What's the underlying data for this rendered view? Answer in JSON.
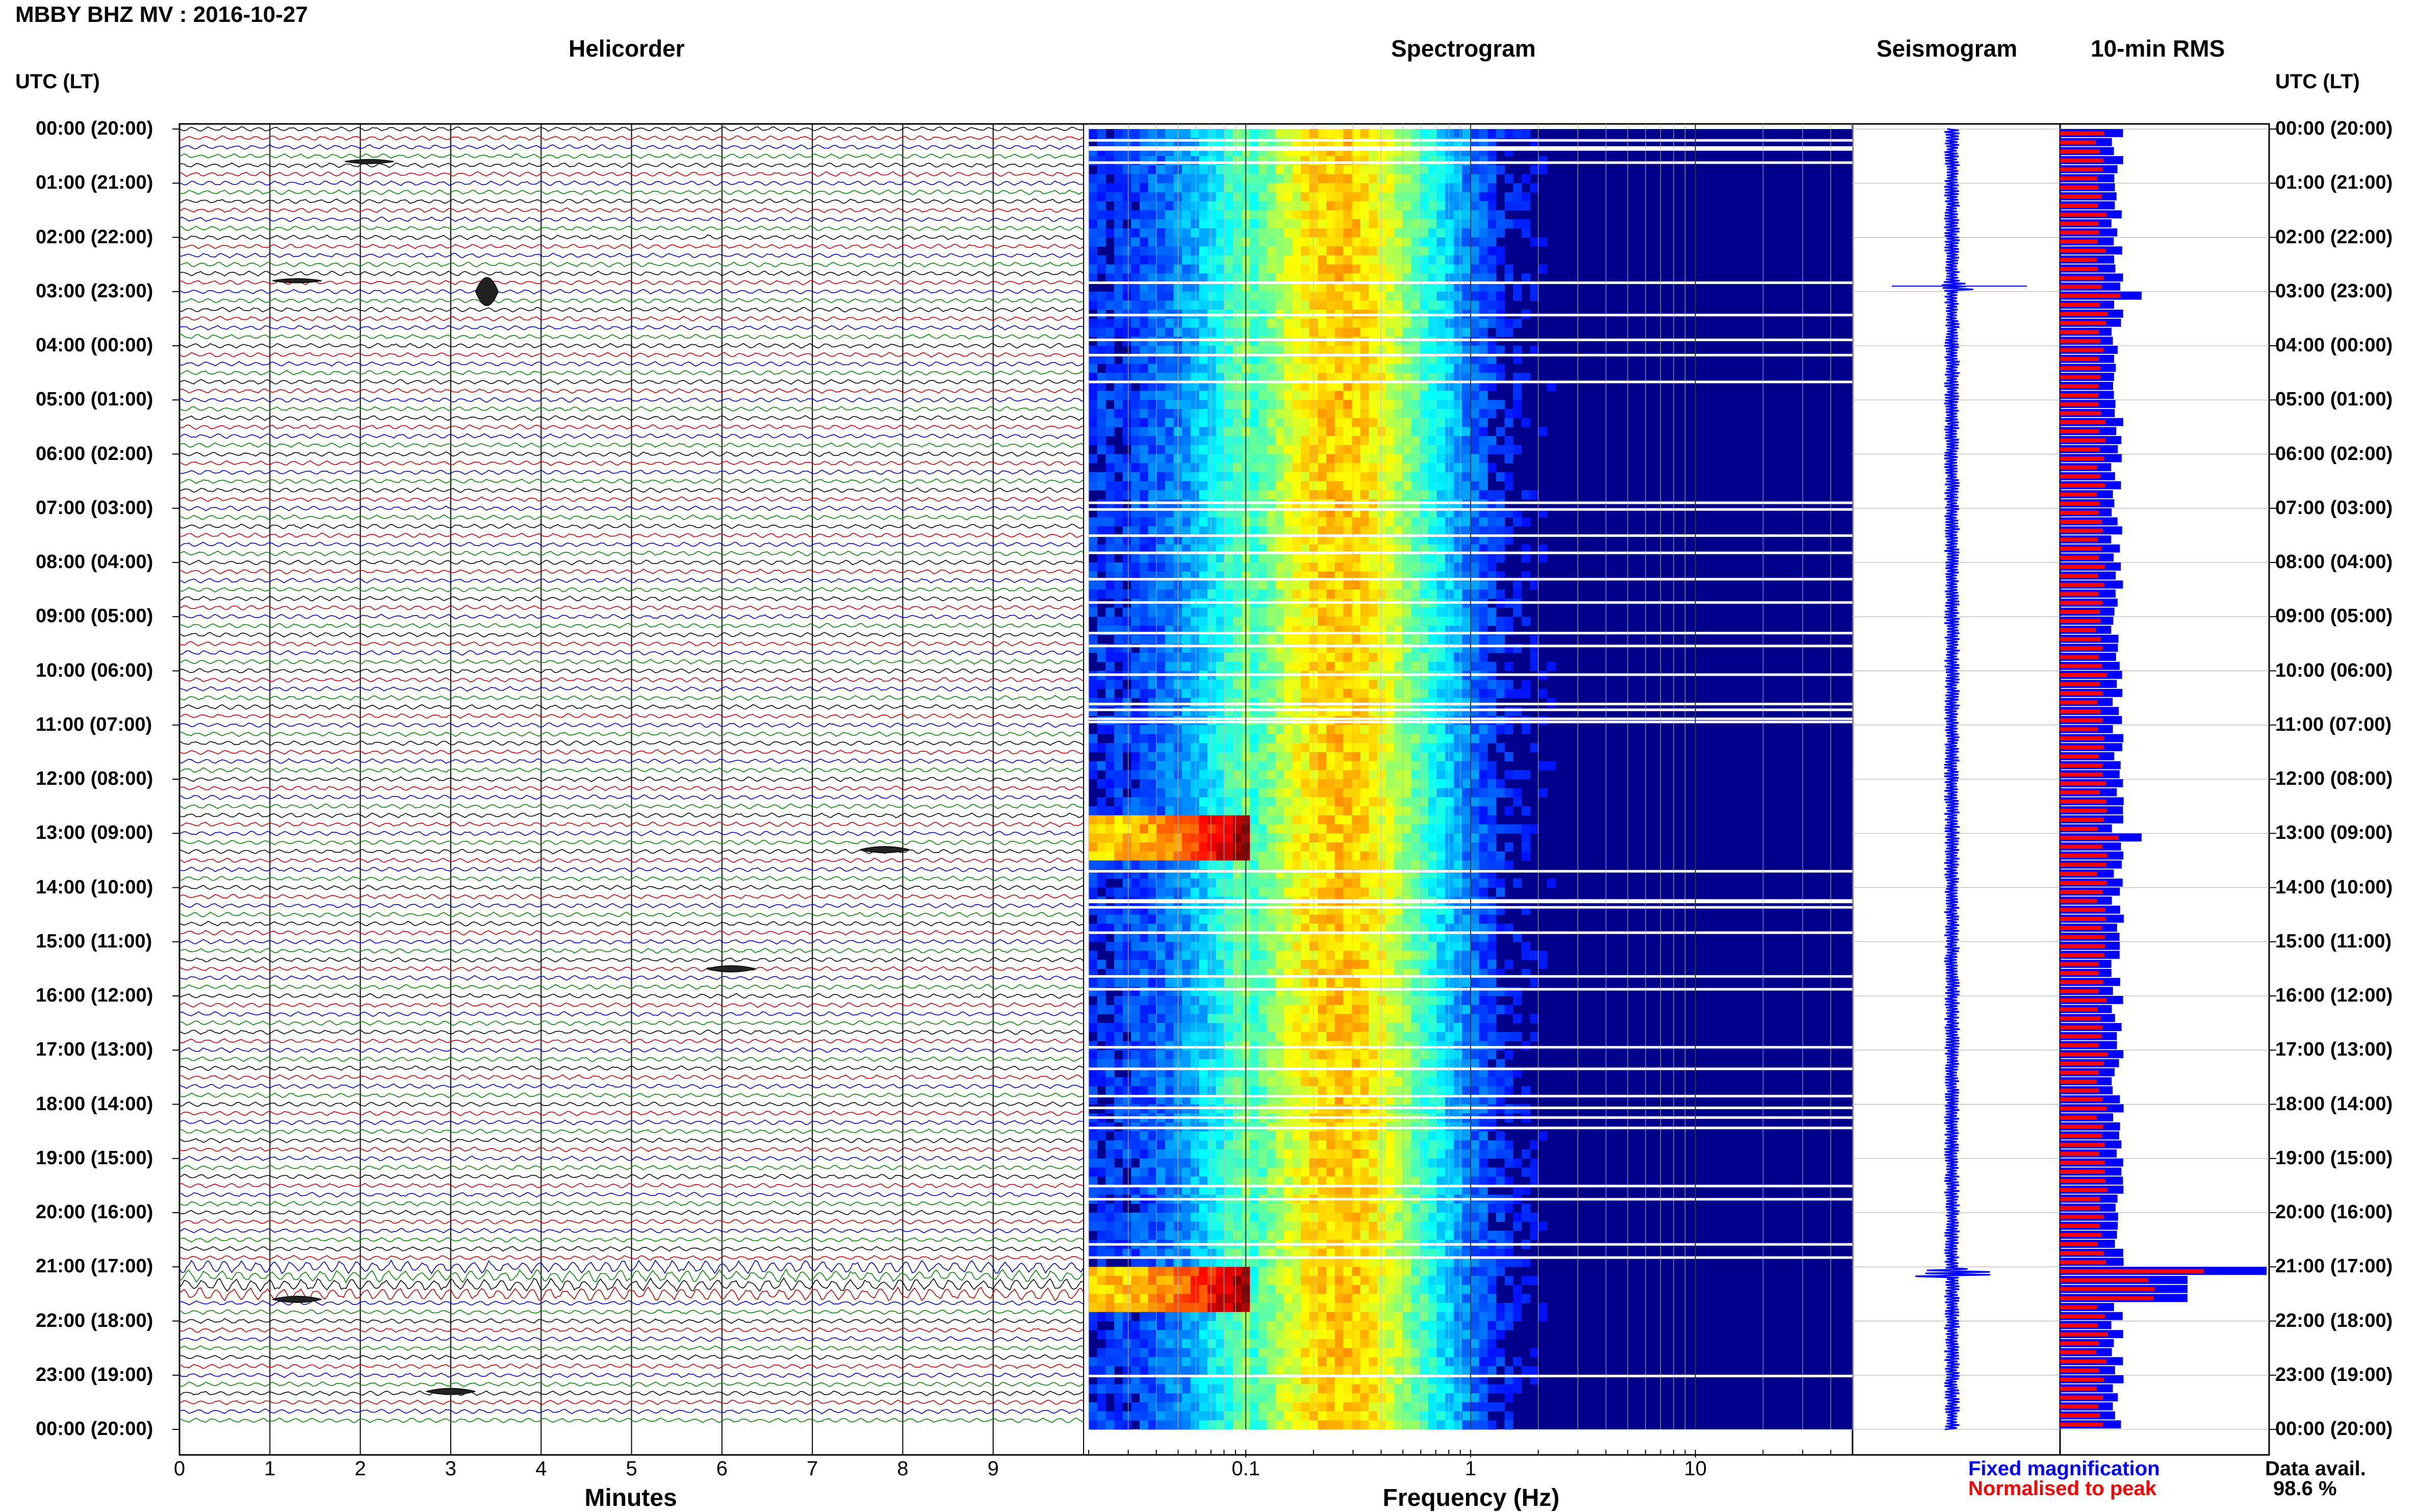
{
  "header": {
    "title": "MBBY BHZ MV : 2016-10-27"
  },
  "panels": {
    "helicorder": "Helicorder",
    "spectrogram": "Spectrogram",
    "seismogram": "Seismogram",
    "rms": "10-min RMS"
  },
  "left_axis_header": "UTC (LT)",
  "right_axis_header": "UTC (LT)",
  "time_labels": [
    "00:00 (20:00)",
    "01:00 (21:00)",
    "02:00 (22:00)",
    "03:00 (23:00)",
    "04:00 (00:00)",
    "05:00 (01:00)",
    "06:00 (02:00)",
    "07:00 (03:00)",
    "08:00 (04:00)",
    "09:00 (05:00)",
    "10:00 (06:00)",
    "11:00 (07:00)",
    "12:00 (08:00)",
    "13:00 (09:00)",
    "14:00 (10:00)",
    "15:00 (11:00)",
    "16:00 (12:00)",
    "17:00 (13:00)",
    "18:00 (14:00)",
    "19:00 (15:00)",
    "20:00 (16:00)",
    "21:00 (17:00)",
    "22:00 (18:00)",
    "23:00 (19:00)",
    "00:00 (20:00)"
  ],
  "colors": {
    "trace_cycle": [
      "#000000",
      "#cc0000",
      "#0000cc",
      "#008800"
    ],
    "spectro_bg": "#00008b",
    "rms_fixed": "#0000ff",
    "rms_normalised": "#ff0000",
    "grid": "#aaaaaa"
  },
  "chart_data": [
    {
      "type": "line",
      "name": "helicorder",
      "title": "Helicorder",
      "xlabel": "Minutes",
      "ylabel": "UTC (LT)",
      "x_ticks": [
        "0",
        "1",
        "2",
        "3",
        "4",
        "5",
        "6",
        "7",
        "8",
        "9"
      ],
      "xlim": [
        0,
        10
      ],
      "rows_per_hour": 6,
      "events": [
        {
          "hour": 3.0,
          "minute": 3.4,
          "amplitude": "large"
        },
        {
          "hour": 0.6,
          "minute": 2.1,
          "amplitude": "small"
        },
        {
          "hour": 2.8,
          "minute": 1.3,
          "amplitude": "small"
        },
        {
          "hour": 13.3,
          "minute": 7.8,
          "amplitude": "medium"
        },
        {
          "hour": 15.5,
          "minute": 6.1,
          "amplitude": "medium"
        },
        {
          "hour": 21.6,
          "minute": 1.3,
          "amplitude": "medium"
        },
        {
          "hour": 23.3,
          "minute": 3.0,
          "amplitude": "medium"
        }
      ]
    },
    {
      "type": "heatmap",
      "name": "spectrogram",
      "title": "Spectrogram",
      "xlabel": "Frequency (Hz)",
      "x_scale": "log",
      "x_ticks": [
        "0.1",
        "1",
        "10"
      ],
      "xlim": [
        0.02,
        50
      ],
      "peak_band_hz": [
        0.15,
        0.4
      ],
      "colormap": "jet",
      "strong_intervals_hours": [
        [
          12.6,
          13.4
        ],
        [
          20.9,
          21.7
        ]
      ]
    },
    {
      "type": "line",
      "name": "seismogram",
      "title": "Seismogram",
      "spikes_hours": [
        2.9,
        21.1
      ]
    },
    {
      "type": "bar",
      "name": "rms",
      "title": "10-min RMS",
      "orientation": "horizontal",
      "series": [
        {
          "name": "Fixed magnification"
        },
        {
          "name": "Normalised to peak"
        }
      ],
      "peak_hour": 21.0
    }
  ],
  "legend": {
    "fixed": "Fixed magnification",
    "normalised": "Normalised to peak"
  },
  "data_avail": {
    "label": "Data avail.",
    "value": "98.6 %"
  }
}
